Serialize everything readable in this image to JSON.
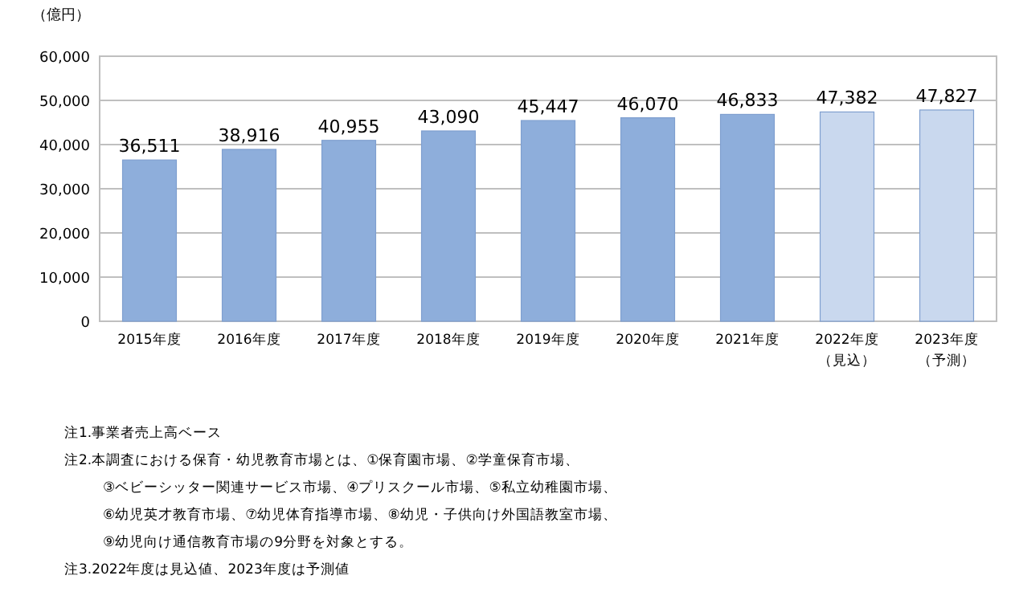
{
  "chart_data": {
    "type": "bar",
    "ylabel": "（億円）",
    "categories": [
      "2015年度",
      "2016年度",
      "2017年度",
      "2018年度",
      "2019年度",
      "2020年度",
      "2021年度",
      "2022年度（見込）",
      "2023年度（予測）"
    ],
    "values": [
      36511,
      38916,
      40955,
      43090,
      45447,
      46070,
      46833,
      47382,
      47827
    ],
    "value_labels": [
      "36,511",
      "38,916",
      "40,955",
      "43,090",
      "45,447",
      "46,070",
      "46,833",
      "47,382",
      "47,827"
    ],
    "colors": [
      "#8eaedb",
      "#8eaedb",
      "#8eaedb",
      "#8eaedb",
      "#8eaedb",
      "#8eaedb",
      "#8eaedb",
      "#c9d8ee",
      "#c9d8ee"
    ],
    "ylim": [
      0,
      60000
    ],
    "yticks": [
      0,
      {
        "value": 10000,
        "label": "10,000"
      },
      {
        "value": 20000,
        "label": "20,000"
      },
      {
        "value": 30000,
        "label": "30,000"
      },
      {
        "value": 40000,
        "label": "40,000"
      },
      {
        "value": 50000,
        "label": "50,000"
      },
      {
        "value": 60000,
        "label": "60,000"
      }
    ],
    "grid": "y",
    "annotations": [
      "注1.事業者売上高ベース",
      "注2.本調査における保育・幼児教育市場とは、①保育園市場、②学童保育市場、\n③ベビーシッター関連サービス市場、④プリスクール市場、⑤私立幼稚園市場、\n⑥幼児英才教育市場、⑦幼児体育指導市場、⑧幼児・子供向け外国語教室市場、\n⑨幼児向け通信教育市場の9分野を対象とする。",
      "注3.2022年度は見込値、2023年度は予測値"
    ]
  }
}
